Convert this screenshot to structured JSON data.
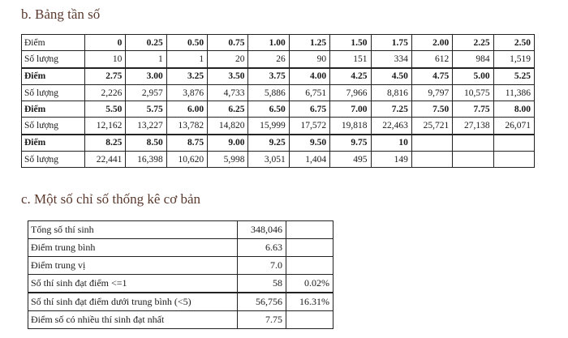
{
  "section_b": {
    "title": "b.  Bảng tần số"
  },
  "freq_rows": [
    {
      "type": "diem",
      "label": "Điểm",
      "cells": [
        "0",
        "0.25",
        "0.50",
        "0.75",
        "1.00",
        "1.25",
        "1.50",
        "1.75",
        "2.00",
        "2.25",
        "2.50"
      ]
    },
    {
      "type": "sl",
      "label": "Số lượng",
      "cells": [
        "10",
        "1",
        "1",
        "20",
        "26",
        "90",
        "151",
        "334",
        "612",
        "984",
        "1,519"
      ]
    },
    {
      "type": "diem",
      "label": "Điểm",
      "cells": [
        "2.75",
        "3.00",
        "3.25",
        "3.50",
        "3.75",
        "4.00",
        "4.25",
        "4.50",
        "4.75",
        "5.00",
        "5.25"
      ]
    },
    {
      "type": "sl",
      "label": "Số lượng",
      "cells": [
        "2,226",
        "2,957",
        "3,876",
        "4,733",
        "5,886",
        "6,751",
        "7,966",
        "8,816",
        "9,797",
        "10,575",
        "11,386"
      ]
    },
    {
      "type": "diem",
      "label": "Điểm",
      "cells": [
        "5.50",
        "5.75",
        "6.00",
        "6.25",
        "6.50",
        "6.75",
        "7.00",
        "7.25",
        "7.50",
        "7.75",
        "8.00"
      ]
    },
    {
      "type": "sl",
      "label": "Số lượng",
      "cells": [
        "12,162",
        "13,227",
        "13,782",
        "14,820",
        "15,999",
        "17,572",
        "19,818",
        "22,463",
        "25,721",
        "27,138",
        "26,071"
      ]
    },
    {
      "type": "diem",
      "label": "Điểm",
      "cells": [
        "8.25",
        "8.50",
        "8.75",
        "9.00",
        "9.25",
        "9.50",
        "9.75",
        "10",
        "",
        "",
        ""
      ]
    },
    {
      "type": "sl",
      "label": "Số lượng",
      "cells": [
        "22,441",
        "16,398",
        "10,620",
        "5,998",
        "3,051",
        "1,404",
        "495",
        "149",
        "",
        "",
        ""
      ]
    }
  ],
  "section_c": {
    "title": "c.  Một số chỉ số thống kê cơ bản"
  },
  "stats_rows": [
    {
      "label": "Tổng số thí sinh",
      "value": "348,046",
      "pct": ""
    },
    {
      "label": "Điểm trung bình",
      "value": "6.63",
      "pct": ""
    },
    {
      "label": "Điểm trung vị",
      "value": "7.0",
      "pct": ""
    },
    {
      "label": "Số thí sinh đạt điểm <=1",
      "value": "58",
      "pct": "0.02%"
    },
    {
      "label": "Số thí sinh đạt điểm dưới trung bình (<5)",
      "value": "56,756",
      "pct": "16.31%"
    },
    {
      "label": "Điểm số có nhiều thí sinh đạt nhất",
      "value": "7.75",
      "pct": ""
    }
  ]
}
